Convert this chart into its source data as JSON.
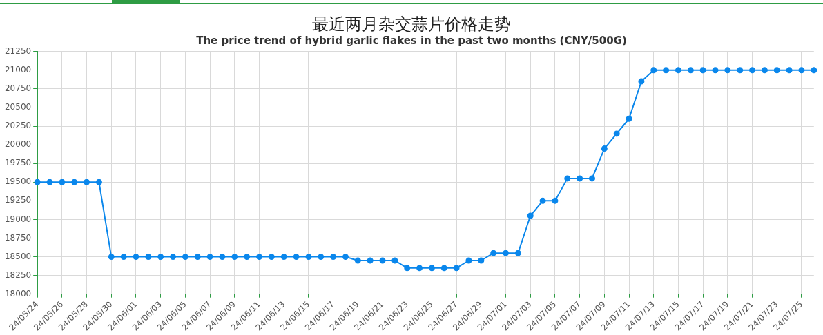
{
  "chart_data": {
    "type": "line",
    "title": "最近两月杂交蒜片价格走势",
    "subtitle": "The price trend of hybrid garlic flakes in the past two months (CNY/500G)",
    "categories": [
      "24/05/24",
      null,
      "24/05/26",
      null,
      "24/05/28",
      null,
      "24/05/30",
      null,
      "24/06/01",
      null,
      "24/06/03",
      null,
      "24/06/05",
      null,
      "24/06/07",
      null,
      "24/06/09",
      null,
      "24/06/11",
      null,
      "24/06/13",
      null,
      "24/06/15",
      null,
      "24/06/17",
      null,
      "24/06/19",
      null,
      "24/06/21",
      null,
      "24/06/23",
      null,
      "24/06/25",
      null,
      "24/06/27",
      null,
      "24/06/29",
      null,
      "24/07/01",
      null,
      "24/07/03",
      null,
      "24/07/05",
      null,
      "24/07/07",
      null,
      "24/07/09",
      null,
      "24/07/11",
      null,
      "24/07/13",
      null,
      "24/07/15",
      null,
      "24/07/17",
      null,
      "24/07/19",
      null,
      "24/07/21",
      null,
      "24/07/23",
      null,
      "24/07/25",
      null
    ],
    "series": [
      {
        "color": "#0a87ec",
        "values": [
          19500,
          19500,
          19500,
          19500,
          19500,
          19500,
          18500,
          18500,
          18500,
          18500,
          18500,
          18500,
          18500,
          18500,
          18500,
          18500,
          18500,
          18500,
          18500,
          18500,
          18500,
          18500,
          18500,
          18500,
          18500,
          18500,
          18450,
          18450,
          18450,
          18450,
          18350,
          18350,
          18350,
          18350,
          18350,
          18450,
          18450,
          18550,
          18550,
          18550,
          19050,
          19250,
          19250,
          19550,
          19550,
          19550,
          19950,
          20150,
          20350,
          20850,
          21000,
          21000,
          21000,
          21000,
          21000,
          21000,
          21000,
          21000,
          21000,
          21000,
          21000,
          21000,
          21000,
          21000
        ]
      }
    ],
    "ylim": [
      18000,
      21250
    ],
    "yticks": [
      18000,
      18250,
      18500,
      18750,
      19000,
      19250,
      19500,
      19750,
      20000,
      20250,
      20500,
      20750,
      21000,
      21250
    ],
    "grid": true,
    "legend": false,
    "marker": "circle",
    "line_style": "solid"
  }
}
